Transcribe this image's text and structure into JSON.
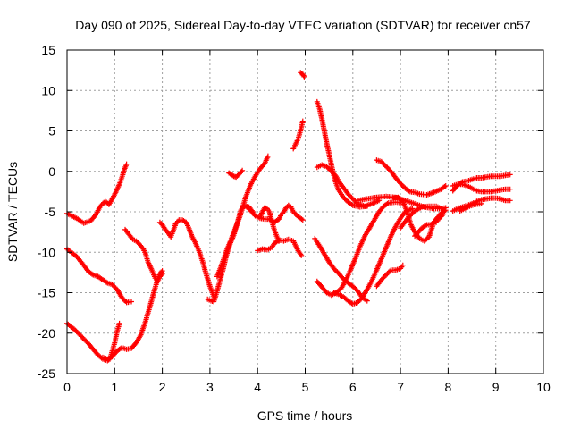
{
  "chart_data": {
    "type": "scatter",
    "title": "Day 090 of 2025, Sidereal Day-to-day VTEC variation (SDTVAR) for receiver cn57",
    "xlabel": "GPS time / hours",
    "ylabel": "SDTVAR / TECUs",
    "xlim": [
      0,
      10
    ],
    "ylim": [
      -25,
      15
    ],
    "xticks": [
      "0",
      "1",
      "2",
      "3",
      "4",
      "5",
      "6",
      "7",
      "8",
      "9",
      "10"
    ],
    "yticks": [
      "15",
      "10",
      "5",
      "0",
      "-5",
      "-10",
      "-15",
      "-20",
      "-25"
    ],
    "grid": true,
    "marker": "plus",
    "color": "#ff0000",
    "tracks": [
      [
        [
          0.0,
          -5.2
        ],
        [
          0.2,
          -5.8
        ],
        [
          0.35,
          -6.4
        ],
        [
          0.5,
          -6.1
        ],
        [
          0.6,
          -5.4
        ],
        [
          0.7,
          -4.3
        ],
        [
          0.8,
          -3.7
        ],
        [
          0.88,
          -4.1
        ],
        [
          0.95,
          -3.4
        ],
        [
          1.02,
          -2.6
        ],
        [
          1.1,
          -1.6
        ],
        [
          1.16,
          -0.6
        ],
        [
          1.2,
          0.2
        ],
        [
          1.25,
          0.9
        ]
      ],
      [
        [
          0.0,
          -9.6
        ],
        [
          0.2,
          -10.5
        ],
        [
          0.35,
          -11.6
        ],
        [
          0.45,
          -12.4
        ],
        [
          0.55,
          -12.8
        ],
        [
          0.65,
          -13.0
        ],
        [
          0.75,
          -13.4
        ],
        [
          0.85,
          -13.8
        ],
        [
          0.95,
          -14.0
        ],
        [
          1.05,
          -14.6
        ],
        [
          1.15,
          -15.6
        ],
        [
          1.25,
          -16.2
        ],
        [
          1.35,
          -16.1
        ]
      ],
      [
        [
          0.0,
          -18.8
        ],
        [
          0.15,
          -19.5
        ],
        [
          0.3,
          -20.4
        ],
        [
          0.45,
          -21.3
        ],
        [
          0.55,
          -22.0
        ],
        [
          0.65,
          -22.7
        ],
        [
          0.75,
          -23.2
        ],
        [
          0.85,
          -23.4
        ],
        [
          0.9,
          -23.2
        ],
        [
          0.95,
          -22.2
        ],
        [
          1.0,
          -21.2
        ],
        [
          1.05,
          -19.8
        ],
        [
          1.1,
          -18.8
        ]
      ],
      [
        [
          0.75,
          -23.0
        ],
        [
          0.85,
          -23.2
        ],
        [
          0.95,
          -22.9
        ],
        [
          1.05,
          -22.2
        ],
        [
          1.15,
          -21.8
        ],
        [
          1.25,
          -22.0
        ],
        [
          1.35,
          -21.9
        ],
        [
          1.45,
          -21.2
        ],
        [
          1.55,
          -20.2
        ],
        [
          1.65,
          -18.5
        ],
        [
          1.75,
          -16.5
        ],
        [
          1.82,
          -15.0
        ],
        [
          1.88,
          -13.8
        ],
        [
          1.95,
          -12.6
        ],
        [
          2.0,
          -12.3
        ]
      ],
      [
        [
          1.22,
          -7.2
        ],
        [
          1.3,
          -7.8
        ],
        [
          1.38,
          -8.4
        ],
        [
          1.45,
          -8.6
        ],
        [
          1.52,
          -9.0
        ],
        [
          1.6,
          -9.6
        ],
        [
          1.65,
          -10.2
        ],
        [
          1.7,
          -11.2
        ],
        [
          1.78,
          -12.2
        ],
        [
          1.85,
          -13.2
        ],
        [
          1.9,
          -13.6
        ],
        [
          1.95,
          -13.0
        ],
        [
          2.0,
          -12.7
        ]
      ],
      [
        [
          1.95,
          -6.3
        ],
        [
          2.0,
          -6.6
        ],
        [
          2.05,
          -7.1
        ],
        [
          2.12,
          -7.6
        ],
        [
          2.18,
          -8.1
        ],
        [
          2.22,
          -7.5
        ],
        [
          2.28,
          -6.5
        ],
        [
          2.35,
          -6.0
        ],
        [
          2.42,
          -6.0
        ],
        [
          2.5,
          -6.3
        ],
        [
          2.55,
          -6.9
        ],
        [
          2.62,
          -8.0
        ],
        [
          2.7,
          -8.9
        ],
        [
          2.78,
          -10.0
        ],
        [
          2.85,
          -11.2
        ],
        [
          2.92,
          -12.7
        ],
        [
          3.0,
          -14.2
        ],
        [
          3.05,
          -15.0
        ],
        [
          3.1,
          -15.8
        ]
      ],
      [
        [
          2.95,
          -15.8
        ],
        [
          3.02,
          -16.0
        ],
        [
          3.08,
          -16.1
        ],
        [
          3.12,
          -15.4
        ],
        [
          3.16,
          -14.6
        ],
        [
          3.22,
          -13.3
        ],
        [
          3.28,
          -12.0
        ],
        [
          3.34,
          -10.5
        ],
        [
          3.42,
          -9.0
        ],
        [
          3.5,
          -7.9
        ],
        [
          3.58,
          -6.3
        ],
        [
          3.65,
          -4.8
        ],
        [
          3.72,
          -4.2
        ],
        [
          3.82,
          -4.4
        ],
        [
          3.9,
          -5.0
        ]
      ],
      [
        [
          3.4,
          -0.2
        ],
        [
          3.5,
          -0.6
        ],
        [
          3.55,
          -0.7
        ],
        [
          3.62,
          -0.3
        ],
        [
          3.68,
          0.1
        ]
      ],
      [
        [
          3.15,
          -13.0
        ],
        [
          3.25,
          -11.5
        ],
        [
          3.35,
          -9.8
        ],
        [
          3.45,
          -8.3
        ],
        [
          3.55,
          -6.8
        ],
        [
          3.65,
          -5.2
        ],
        [
          3.75,
          -3.2
        ],
        [
          3.85,
          -1.7
        ],
        [
          3.95,
          -0.6
        ],
        [
          4.05,
          0.3
        ],
        [
          4.15,
          1.0
        ],
        [
          4.22,
          1.9
        ]
      ],
      [
        [
          3.75,
          -4.3
        ],
        [
          3.85,
          -4.8
        ],
        [
          3.95,
          -5.5
        ],
        [
          4.05,
          -5.8
        ],
        [
          4.15,
          -5.9
        ],
        [
          4.25,
          -5.9
        ],
        [
          4.35,
          -6.3
        ],
        [
          4.45,
          -5.9
        ],
        [
          4.5,
          -5.3
        ],
        [
          4.55,
          -5.0
        ],
        [
          4.6,
          -4.5
        ],
        [
          4.65,
          -4.2
        ],
        [
          4.7,
          -4.4
        ],
        [
          4.75,
          -5.0
        ],
        [
          4.85,
          -5.6
        ],
        [
          4.95,
          -6.0
        ]
      ],
      [
        [
          4.0,
          -9.8
        ],
        [
          4.1,
          -9.6
        ],
        [
          4.2,
          -9.7
        ],
        [
          4.3,
          -9.4
        ],
        [
          4.35,
          -8.9
        ],
        [
          4.45,
          -8.5
        ],
        [
          4.55,
          -8.6
        ],
        [
          4.65,
          -8.4
        ],
        [
          4.75,
          -8.6
        ],
        [
          4.8,
          -9.2
        ],
        [
          4.85,
          -9.8
        ],
        [
          4.92,
          -10.4
        ]
      ],
      [
        [
          4.05,
          -5.7
        ],
        [
          4.1,
          -5.0
        ],
        [
          4.15,
          -4.5
        ],
        [
          4.2,
          -4.6
        ],
        [
          4.25,
          -5.0
        ],
        [
          4.3,
          -6.2
        ],
        [
          4.35,
          -7.2
        ],
        [
          4.4,
          -8.0
        ],
        [
          4.45,
          -8.6
        ]
      ],
      [
        [
          4.75,
          2.8
        ],
        [
          4.8,
          3.4
        ],
        [
          4.85,
          4.0
        ],
        [
          4.9,
          5.0
        ],
        [
          4.95,
          6.2
        ]
      ],
      [
        [
          4.9,
          12.2
        ],
        [
          4.95,
          12.0
        ],
        [
          4.98,
          11.7
        ]
      ],
      [
        [
          5.25,
          8.6
        ],
        [
          5.3,
          7.8
        ],
        [
          5.35,
          6.5
        ],
        [
          5.4,
          5.0
        ],
        [
          5.45,
          3.5
        ],
        [
          5.5,
          2.2
        ],
        [
          5.55,
          0.8
        ],
        [
          5.6,
          -0.5
        ],
        [
          5.65,
          -1.5
        ],
        [
          5.7,
          -2.3
        ],
        [
          5.8,
          -3.2
        ],
        [
          5.9,
          -3.8
        ],
        [
          6.0,
          -4.2
        ],
        [
          6.15,
          -4.4
        ],
        [
          6.3,
          -4.3
        ]
      ],
      [
        [
          5.25,
          0.5
        ],
        [
          5.35,
          0.8
        ],
        [
          5.45,
          0.6
        ],
        [
          5.55,
          0.0
        ],
        [
          5.65,
          -0.6
        ],
        [
          5.7,
          -1.2
        ],
        [
          5.8,
          -2.0
        ],
        [
          5.9,
          -2.8
        ],
        [
          6.0,
          -3.4
        ],
        [
          6.1,
          -4.0
        ],
        [
          6.25,
          -4.3
        ],
        [
          6.4,
          -4.0
        ],
        [
          6.55,
          -3.6
        ]
      ],
      [
        [
          5.2,
          -8.3
        ],
        [
          5.3,
          -9.2
        ],
        [
          5.4,
          -10.2
        ],
        [
          5.5,
          -11.2
        ],
        [
          5.6,
          -12.0
        ],
        [
          5.7,
          -12.6
        ],
        [
          5.8,
          -13.3
        ],
        [
          5.9,
          -13.8
        ],
        [
          6.0,
          -14.2
        ],
        [
          6.1,
          -14.8
        ],
        [
          6.2,
          -15.6
        ],
        [
          6.3,
          -16.0
        ]
      ],
      [
        [
          5.25,
          -13.6
        ],
        [
          5.35,
          -14.3
        ],
        [
          5.45,
          -15.0
        ],
        [
          5.55,
          -15.3
        ],
        [
          5.65,
          -15.0
        ],
        [
          5.75,
          -14.5
        ],
        [
          5.85,
          -13.5
        ],
        [
          5.95,
          -12.2
        ],
        [
          6.05,
          -10.8
        ],
        [
          6.15,
          -9.3
        ],
        [
          6.25,
          -8.0
        ],
        [
          6.35,
          -7.0
        ],
        [
          6.45,
          -6.0
        ],
        [
          6.55,
          -5.0
        ],
        [
          6.65,
          -4.3
        ],
        [
          6.75,
          -3.9
        ],
        [
          6.9,
          -3.8
        ],
        [
          7.05,
          -3.9
        ]
      ],
      [
        [
          5.6,
          -15.0
        ],
        [
          5.7,
          -15.2
        ],
        [
          5.8,
          -15.5
        ],
        [
          5.9,
          -16.0
        ],
        [
          6.0,
          -16.4
        ],
        [
          6.1,
          -16.2
        ],
        [
          6.2,
          -15.6
        ],
        [
          6.3,
          -14.6
        ],
        [
          6.4,
          -13.5
        ],
        [
          6.5,
          -12.2
        ],
        [
          6.6,
          -10.8
        ],
        [
          6.7,
          -9.4
        ],
        [
          6.8,
          -8.0
        ],
        [
          6.9,
          -6.8
        ],
        [
          7.0,
          -5.8
        ],
        [
          7.1,
          -5.0
        ],
        [
          7.25,
          -4.6
        ]
      ],
      [
        [
          6.5,
          -14.2
        ],
        [
          6.6,
          -13.4
        ],
        [
          6.7,
          -12.8
        ],
        [
          6.8,
          -12.2
        ],
        [
          6.9,
          -12.2
        ],
        [
          7.0,
          -12.0
        ],
        [
          7.05,
          -11.6
        ]
      ],
      [
        [
          6.1,
          -3.6
        ],
        [
          6.3,
          -3.4
        ],
        [
          6.5,
          -3.2
        ],
        [
          6.7,
          -3.1
        ],
        [
          6.9,
          -3.2
        ],
        [
          7.1,
          -3.6
        ],
        [
          7.3,
          -4.0
        ],
        [
          7.5,
          -4.4
        ],
        [
          7.7,
          -4.6
        ],
        [
          7.85,
          -4.6
        ],
        [
          7.95,
          -4.5
        ]
      ],
      [
        [
          6.5,
          1.4
        ],
        [
          6.6,
          1.2
        ],
        [
          6.7,
          0.6
        ],
        [
          6.8,
          0.0
        ],
        [
          6.9,
          -0.8
        ],
        [
          7.0,
          -1.5
        ],
        [
          7.1,
          -2.1
        ],
        [
          7.2,
          -2.5
        ],
        [
          7.3,
          -2.6
        ],
        [
          7.4,
          -2.8
        ],
        [
          7.55,
          -2.9
        ],
        [
          7.7,
          -2.6
        ],
        [
          7.85,
          -2.2
        ],
        [
          7.95,
          -1.8
        ]
      ],
      [
        [
          6.85,
          -3.3
        ],
        [
          6.95,
          -3.2
        ],
        [
          7.05,
          -3.7
        ],
        [
          7.15,
          -5.2
        ],
        [
          7.22,
          -6.6
        ],
        [
          7.3,
          -7.5
        ],
        [
          7.4,
          -8.3
        ],
        [
          7.5,
          -8.6
        ],
        [
          7.6,
          -8.1
        ],
        [
          7.65,
          -7.2
        ],
        [
          7.7,
          -6.3
        ],
        [
          7.75,
          -6.3
        ],
        [
          7.8,
          -5.9
        ],
        [
          7.9,
          -5.3
        ]
      ],
      [
        [
          7.0,
          -7.0
        ],
        [
          7.15,
          -5.8
        ],
        [
          7.3,
          -4.9
        ],
        [
          7.45,
          -4.4
        ],
        [
          7.6,
          -4.3
        ],
        [
          7.75,
          -4.3
        ],
        [
          7.85,
          -4.6
        ]
      ],
      [
        [
          7.3,
          -8.0
        ],
        [
          7.45,
          -7.0
        ],
        [
          7.55,
          -6.6
        ],
        [
          7.65,
          -6.6
        ],
        [
          7.75,
          -5.9
        ],
        [
          7.85,
          -5.2
        ],
        [
          7.95,
          -4.8
        ]
      ],
      [
        [
          8.1,
          -2.4
        ],
        [
          8.2,
          -1.7
        ],
        [
          8.3,
          -1.3
        ],
        [
          8.4,
          -1.2
        ],
        [
          8.5,
          -1.0
        ],
        [
          8.6,
          -0.8
        ],
        [
          8.7,
          -0.8
        ],
        [
          8.8,
          -0.7
        ],
        [
          8.9,
          -0.6
        ],
        [
          9.0,
          -0.6
        ],
        [
          9.1,
          -0.6
        ],
        [
          9.2,
          -0.5
        ],
        [
          9.3,
          -0.4
        ]
      ],
      [
        [
          8.1,
          -1.8
        ],
        [
          8.2,
          -1.6
        ],
        [
          8.3,
          -1.6
        ],
        [
          8.4,
          -1.8
        ],
        [
          8.5,
          -2.1
        ],
        [
          8.6,
          -2.4
        ],
        [
          8.7,
          -2.5
        ],
        [
          8.8,
          -2.5
        ],
        [
          8.9,
          -2.5
        ],
        [
          9.0,
          -2.4
        ],
        [
          9.1,
          -2.3
        ],
        [
          9.2,
          -2.2
        ],
        [
          9.3,
          -2.2
        ]
      ],
      [
        [
          8.1,
          -4.9
        ],
        [
          8.2,
          -4.6
        ],
        [
          8.3,
          -4.4
        ],
        [
          8.4,
          -4.2
        ],
        [
          8.5,
          -4.0
        ],
        [
          8.6,
          -3.7
        ],
        [
          8.7,
          -3.5
        ],
        [
          8.8,
          -3.4
        ],
        [
          8.9,
          -3.3
        ],
        [
          9.0,
          -3.3
        ],
        [
          9.1,
          -3.4
        ],
        [
          9.2,
          -3.6
        ],
        [
          9.3,
          -3.6
        ]
      ],
      [
        [
          8.25,
          -4.9
        ],
        [
          8.35,
          -4.6
        ],
        [
          8.45,
          -4.3
        ],
        [
          8.55,
          -4.1
        ],
        [
          8.7,
          -4.0
        ]
      ]
    ]
  }
}
